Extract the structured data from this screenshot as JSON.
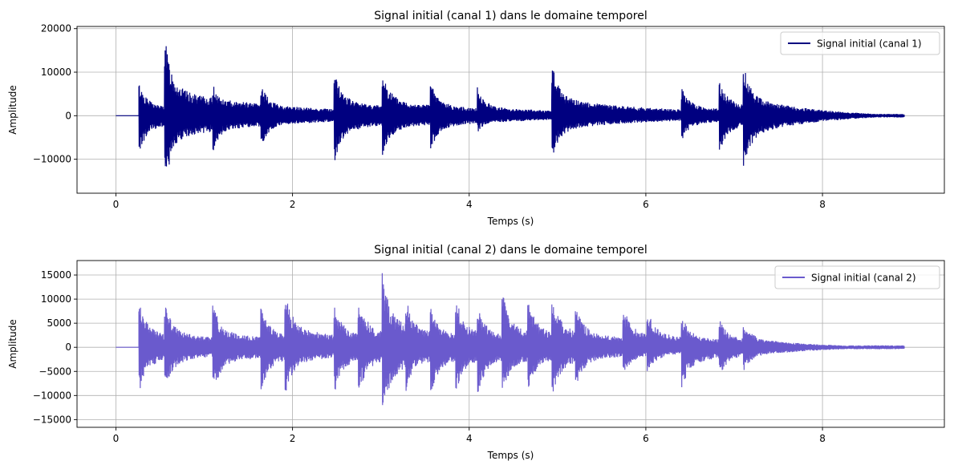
{
  "chart_data": [
    {
      "type": "line",
      "title": "Signal initial (canal 1) dans le domaine temporel",
      "xlabel": "Temps (s)",
      "ylabel": "Amplitude",
      "xlim": [
        -0.44,
        9.38
      ],
      "ylim": [
        -17800,
        20500
      ],
      "xticks": [
        0,
        2,
        4,
        6,
        8
      ],
      "yticks": [
        -10000,
        0,
        10000,
        20000
      ],
      "ytick_labels": [
        "−10000",
        "0",
        "10000",
        "20000"
      ],
      "grid": true,
      "legend_position": "upper right",
      "series": [
        {
          "name": "Signal initial (canal 1)",
          "color": "#000080",
          "duration": 8.93,
          "silence_until": 0.26,
          "transients": [
            {
              "t": 0.26,
              "pos": 7700,
              "neg": -8800
            },
            {
              "t": 0.55,
              "pos": 18800,
              "neg": -16800
            },
            {
              "t": 1.09,
              "pos": 8100,
              "neg": -8900
            },
            {
              "t": 1.64,
              "pos": 7500,
              "neg": -7300
            },
            {
              "t": 2.47,
              "pos": 10800,
              "neg": -10800
            },
            {
              "t": 3.01,
              "pos": 11300,
              "neg": -9800
            },
            {
              "t": 3.56,
              "pos": 8000,
              "neg": -8100
            },
            {
              "t": 4.09,
              "pos": 6700,
              "neg": -3900
            },
            {
              "t": 4.93,
              "pos": 12700,
              "neg": -10300
            },
            {
              "t": 6.4,
              "pos": 6800,
              "neg": -6000
            },
            {
              "t": 6.83,
              "pos": 8700,
              "neg": -8700
            },
            {
              "t": 7.1,
              "pos": 12500,
              "neg": -12800
            }
          ]
        }
      ]
    },
    {
      "type": "line",
      "title": "Signal initial (canal 2) dans le domaine temporel",
      "xlabel": "Temps (s)",
      "ylabel": "Amplitude",
      "xlim": [
        -0.44,
        9.38
      ],
      "ylim": [
        -16600,
        18000
      ],
      "xticks": [
        0,
        2,
        4,
        6,
        8
      ],
      "yticks": [
        -15000,
        -10000,
        -5000,
        0,
        5000,
        10000,
        15000
      ],
      "ytick_labels": [
        "−15000",
        "−10000",
        "−5000",
        "0",
        "5000",
        "10000",
        "15000"
      ],
      "grid": true,
      "legend_position": "upper right",
      "series": [
        {
          "name": "Signal initial (canal 2)",
          "color": "#6A5ACD",
          "duration": 8.93,
          "silence_until": 0.26,
          "transients": [
            {
              "t": 0.26,
              "pos": 9800,
              "neg": -9500
            },
            {
              "t": 0.55,
              "pos": 9700,
              "neg": -9200
            },
            {
              "t": 1.09,
              "pos": 9800,
              "neg": -10300
            },
            {
              "t": 1.64,
              "pos": 9300,
              "neg": -9800
            },
            {
              "t": 1.91,
              "pos": 12400,
              "neg": -10200
            },
            {
              "t": 2.47,
              "pos": 9700,
              "neg": -9800
            },
            {
              "t": 2.74,
              "pos": 11300,
              "neg": -10300
            },
            {
              "t": 3.01,
              "pos": 16700,
              "neg": -15100
            },
            {
              "t": 3.28,
              "pos": 10800,
              "neg": -9200
            },
            {
              "t": 3.56,
              "pos": 9300,
              "neg": -10200
            },
            {
              "t": 3.84,
              "pos": 11300,
              "neg": -10000
            },
            {
              "t": 4.09,
              "pos": 9500,
              "neg": -10300
            },
            {
              "t": 4.37,
              "pos": 12100,
              "neg": -10400
            },
            {
              "t": 4.66,
              "pos": 10900,
              "neg": -9800
            },
            {
              "t": 4.93,
              "pos": 11800,
              "neg": -11000
            },
            {
              "t": 5.2,
              "pos": 9600,
              "neg": -8700
            },
            {
              "t": 5.74,
              "pos": 9400,
              "neg": -6100
            },
            {
              "t": 6.01,
              "pos": 8800,
              "neg": -5800
            },
            {
              "t": 6.4,
              "pos": 7000,
              "neg": -9500
            },
            {
              "t": 6.83,
              "pos": 6200,
              "neg": -6300
            },
            {
              "t": 7.1,
              "pos": 5600,
              "neg": -5200
            }
          ]
        }
      ]
    }
  ]
}
